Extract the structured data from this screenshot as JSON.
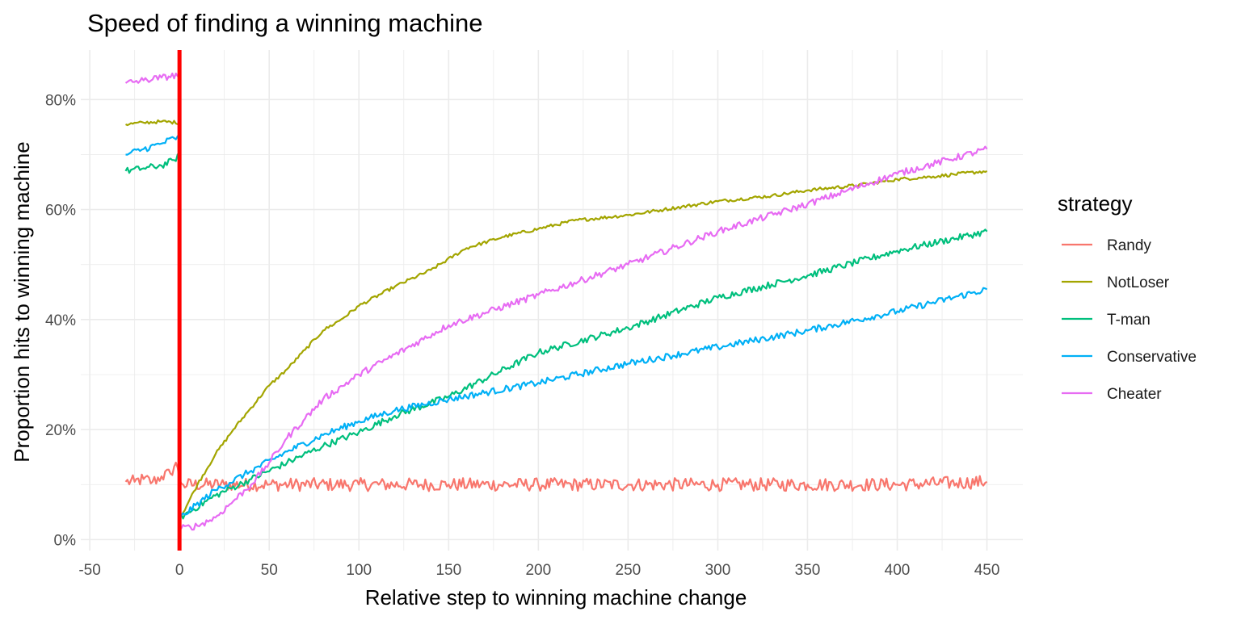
{
  "chart_data": {
    "type": "line",
    "title": "Speed of finding a winning machine",
    "xlabel": "Relative step to winning machine change",
    "ylabel": "Proportion hits to winning machine",
    "xlim": [
      -55,
      470
    ],
    "ylim": [
      -0.02,
      0.89
    ],
    "x_ticks": [
      -50,
      0,
      50,
      100,
      150,
      200,
      250,
      300,
      350,
      400,
      450
    ],
    "x_tick_labels": [
      "-50",
      "0",
      "50",
      "100",
      "150",
      "200",
      "250",
      "300",
      "350",
      "400",
      "450"
    ],
    "y_ticks": [
      0,
      0.2,
      0.4,
      0.6,
      0.8
    ],
    "y_tick_labels": [
      "0%",
      "20%",
      "40%",
      "60%",
      "80%"
    ],
    "grid": true,
    "vline": {
      "x": 0,
      "color": "#ff0000"
    },
    "legend_title": "strategy",
    "legend_position": "right",
    "series": [
      {
        "name": "Randy",
        "color": "#F8766D",
        "x": [
          -30,
          -25,
          -20,
          -15,
          -10,
          -5,
          -2,
          0,
          2,
          25,
          50,
          100,
          150,
          200,
          250,
          300,
          350,
          400,
          450
        ],
        "y": [
          0.105,
          0.105,
          0.11,
          0.105,
          0.115,
          0.12,
          0.14,
          0.11,
          0.1,
          0.1,
          0.1,
          0.1,
          0.1,
          0.1,
          0.1,
          0.1,
          0.1,
          0.1,
          0.105
        ],
        "noise": 0.012
      },
      {
        "name": "NotLoser",
        "color": "#A3A500",
        "x": [
          -30,
          -20,
          -10,
          0,
          0.5,
          10,
          20,
          30,
          40,
          50,
          60,
          70,
          80,
          90,
          100,
          120,
          140,
          160,
          180,
          200,
          220,
          250,
          270,
          300,
          330,
          350,
          380,
          400,
          420,
          450
        ],
        "y": [
          0.755,
          0.758,
          0.76,
          0.758,
          0.04,
          0.1,
          0.155,
          0.2,
          0.24,
          0.28,
          0.31,
          0.345,
          0.38,
          0.4,
          0.425,
          0.46,
          0.49,
          0.53,
          0.55,
          0.565,
          0.58,
          0.59,
          0.6,
          0.615,
          0.625,
          0.635,
          0.645,
          0.655,
          0.66,
          0.67
        ],
        "noise": 0.003
      },
      {
        "name": "T-man",
        "color": "#00BF7D",
        "x": [
          -30,
          -20,
          -10,
          -3,
          0,
          0.5,
          20,
          40,
          60,
          80,
          100,
          120,
          150,
          200,
          250,
          300,
          350,
          400,
          450
        ],
        "y": [
          0.67,
          0.675,
          0.68,
          0.69,
          0.7,
          0.04,
          0.08,
          0.11,
          0.14,
          0.17,
          0.195,
          0.225,
          0.26,
          0.34,
          0.385,
          0.44,
          0.48,
          0.525,
          0.56
        ],
        "noise": 0.006
      },
      {
        "name": "Conservative",
        "color": "#00B0F6",
        "x": [
          -30,
          -20,
          -10,
          -3,
          0,
          0.5,
          20,
          40,
          60,
          80,
          100,
          120,
          150,
          200,
          250,
          300,
          350,
          400,
          450
        ],
        "y": [
          0.7,
          0.71,
          0.72,
          0.73,
          0.73,
          0.04,
          0.09,
          0.125,
          0.16,
          0.19,
          0.215,
          0.235,
          0.255,
          0.285,
          0.32,
          0.35,
          0.38,
          0.415,
          0.455
        ],
        "noise": 0.006
      },
      {
        "name": "Cheater",
        "color": "#E76BF3",
        "x": [
          -30,
          -20,
          -10,
          0,
          0.5,
          10,
          20,
          30,
          40,
          50,
          60,
          70,
          80,
          100,
          150,
          200,
          250,
          300,
          350,
          400,
          450
        ],
        "y": [
          0.83,
          0.835,
          0.84,
          0.845,
          0.02,
          0.025,
          0.04,
          0.07,
          0.1,
          0.14,
          0.185,
          0.22,
          0.255,
          0.3,
          0.39,
          0.445,
          0.5,
          0.56,
          0.61,
          0.665,
          0.71
        ],
        "noise": 0.006
      }
    ]
  }
}
